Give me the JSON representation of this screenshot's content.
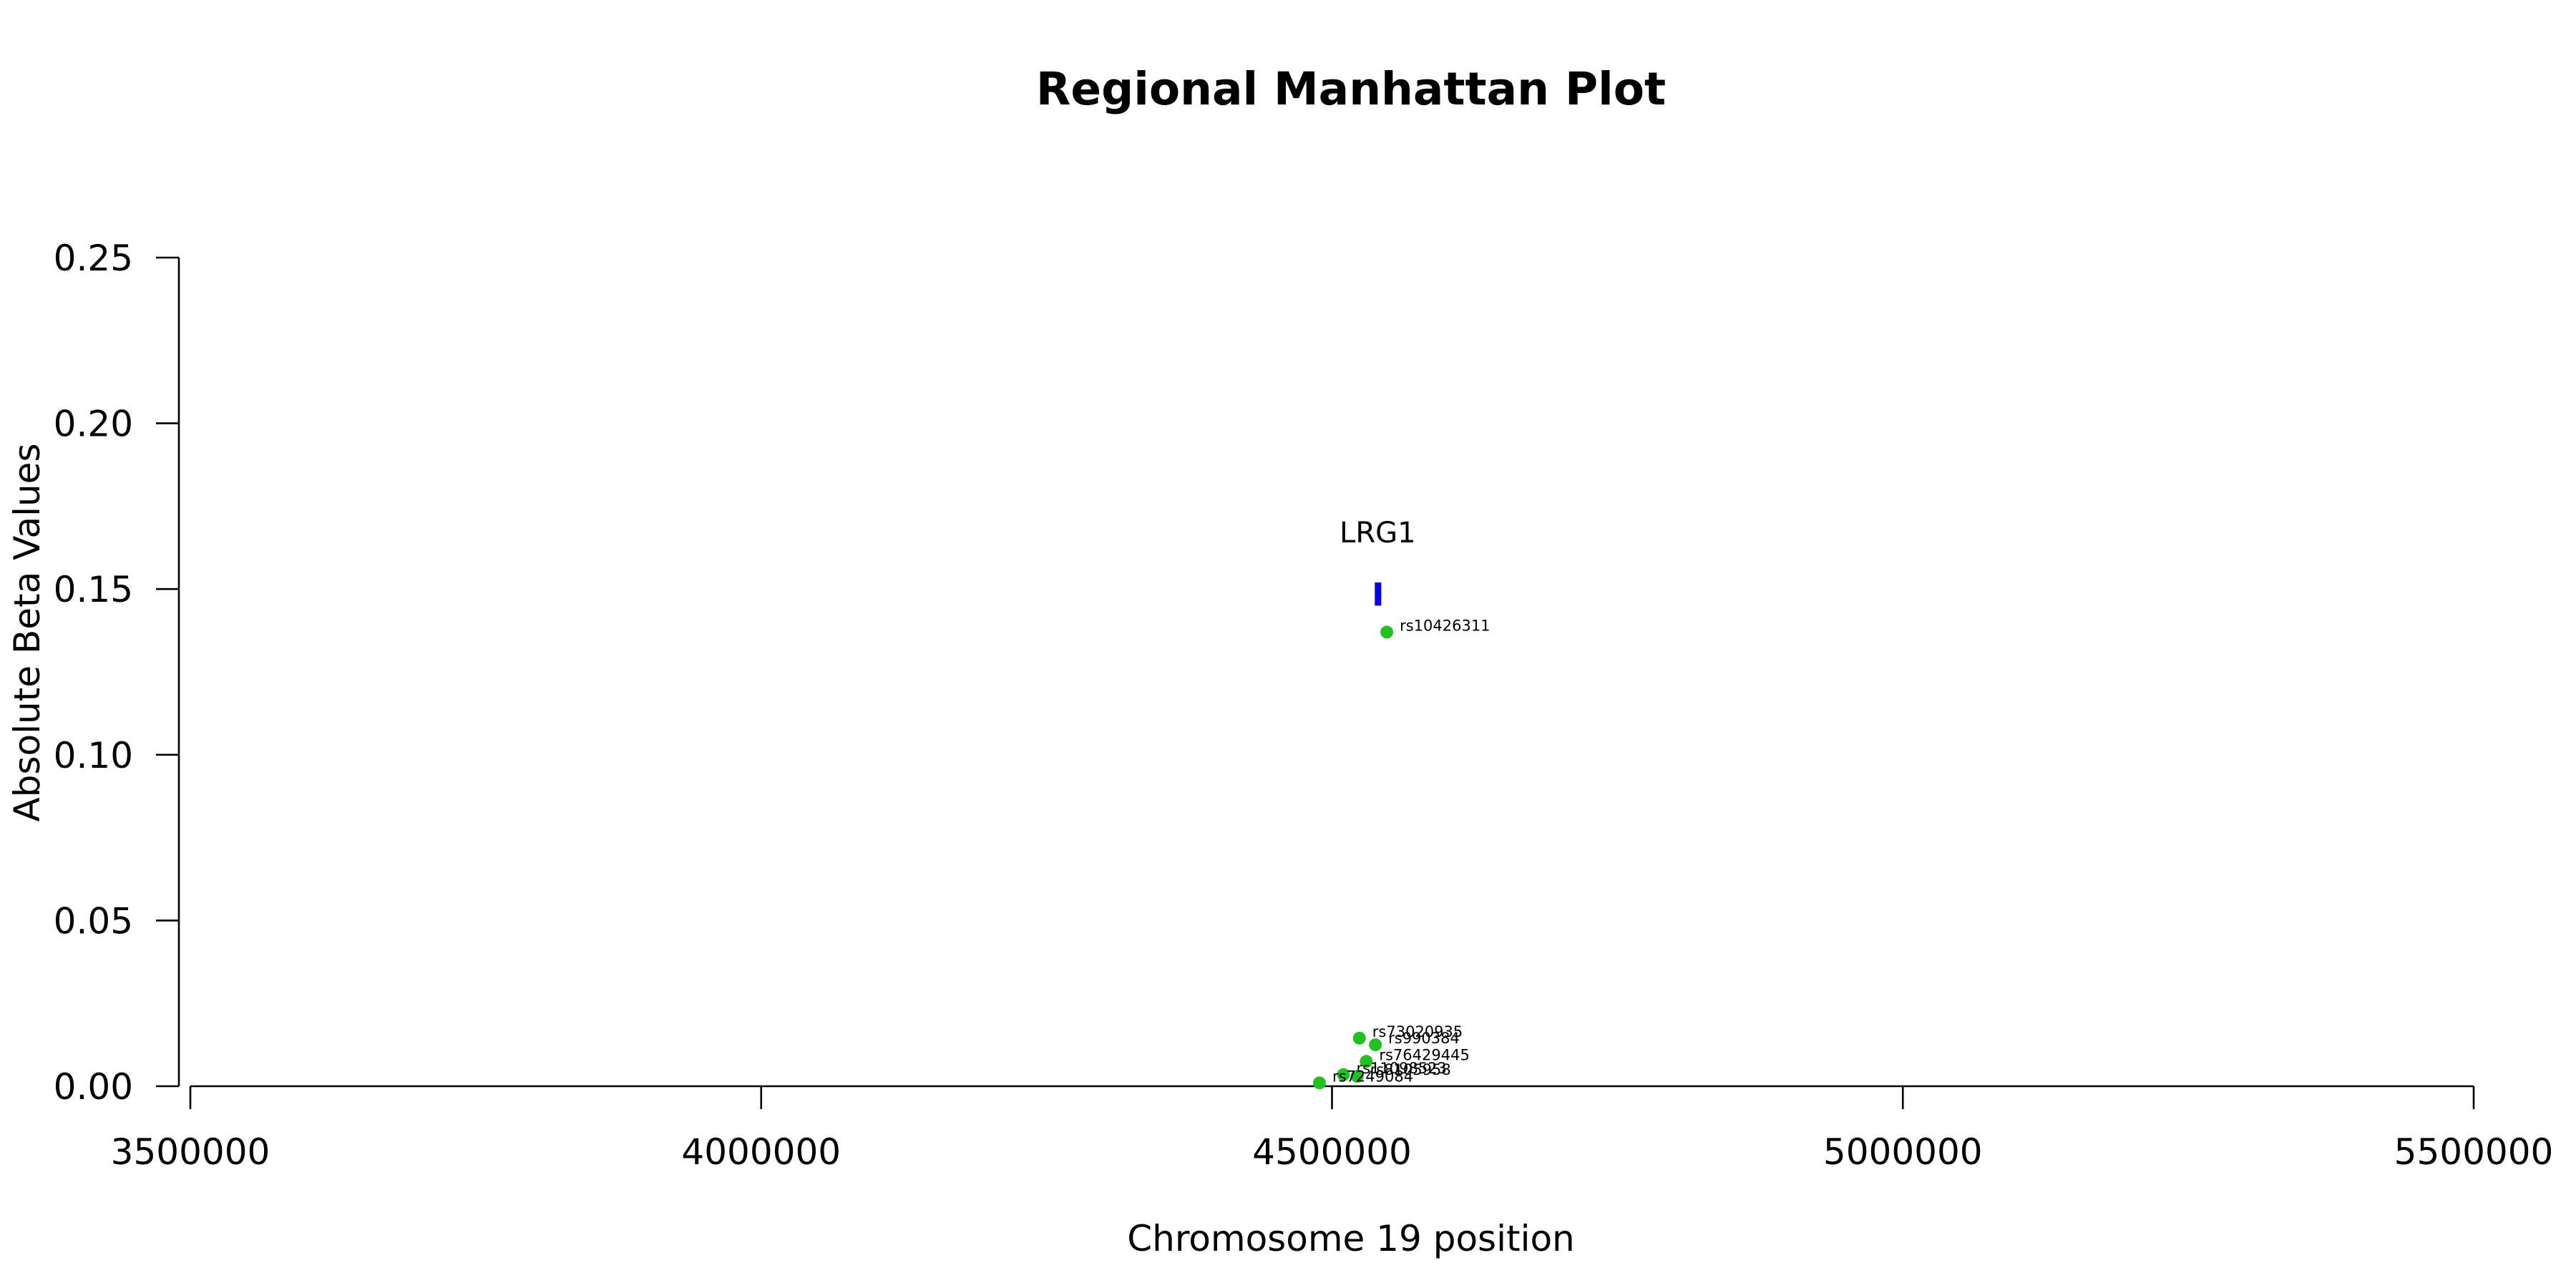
{
  "chart_data": {
    "type": "scatter",
    "title": "Regional Manhattan Plot",
    "xlabel": "Chromosome 19 position",
    "ylabel": "Absolute Beta Values",
    "xlim": [
      3500000,
      5500000
    ],
    "ylim": [
      0,
      0.25
    ],
    "x_ticks": [
      3500000,
      4000000,
      4500000,
      5000000,
      5500000
    ],
    "x_tick_labels": [
      "3500000",
      "4000000",
      "4500000",
      "5000000",
      "5500000"
    ],
    "y_ticks": [
      0,
      0.05,
      0.1,
      0.15,
      0.2,
      0.25
    ],
    "y_tick_labels": [
      "0.00",
      "0.05",
      "0.10",
      "0.15",
      "0.20",
      "0.25"
    ],
    "grid": false,
    "point_color": "#22c022",
    "gene_color": "#0000ee",
    "gene": {
      "name": "LRG1",
      "position": 4540000,
      "y_range": [
        0.145,
        0.152
      ]
    },
    "points": [
      {
        "label": "rs10426311",
        "x": 4548000,
        "y": 0.137
      },
      {
        "label": "rs73020935",
        "x": 4524000,
        "y": 0.0145
      },
      {
        "label": "rs990384",
        "x": 4538000,
        "y": 0.0125
      },
      {
        "label": "rs76429445",
        "x": 4530000,
        "y": 0.0075
      },
      {
        "label": "rs11098523",
        "x": 4510000,
        "y": 0.0035
      },
      {
        "label": "rs8105958",
        "x": 4522000,
        "y": 0.003
      },
      {
        "label": "rs7249084",
        "x": 4489000,
        "y": 0.001
      }
    ]
  }
}
